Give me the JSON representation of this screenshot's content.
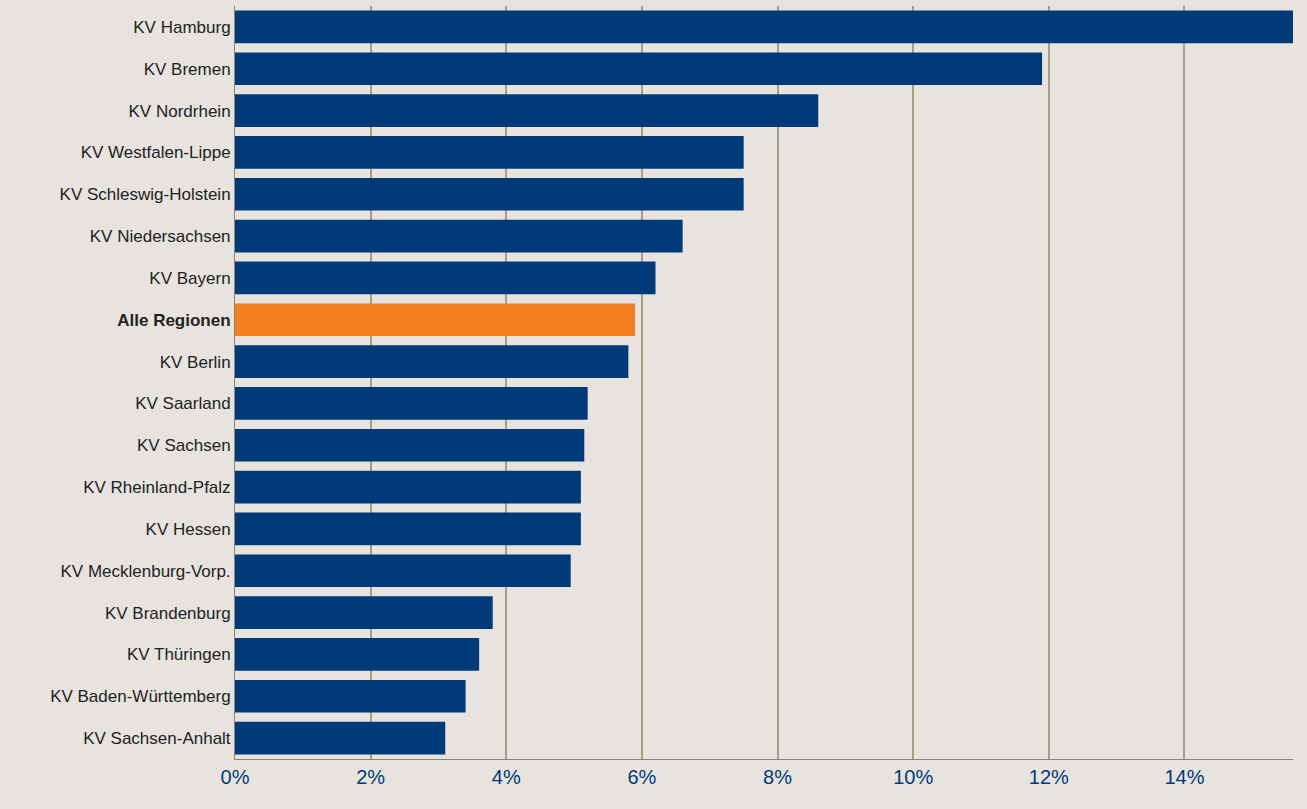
{
  "chart_data": {
    "type": "bar",
    "orientation": "horizontal",
    "categories": [
      "KV Hamburg",
      "KV Bremen",
      "KV Nordrhein",
      "KV Westfalen-Lippe",
      "KV Schleswig-Holstein",
      "KV Niedersachsen",
      "KV Bayern",
      "Alle Regionen",
      "KV Berlin",
      "KV Saarland",
      "KV Sachsen",
      "KV Rheinland-Pfalz",
      "KV Hessen",
      "KV Mecklenburg-Vorp.",
      "KV Brandenburg",
      "KV Thüringen",
      "KV Baden-Württemberg",
      "KV Sachsen-Anhalt"
    ],
    "values": [
      15.6,
      11.9,
      8.6,
      7.5,
      7.5,
      6.6,
      6.2,
      5.9,
      5.8,
      5.2,
      5.15,
      5.1,
      5.1,
      4.95,
      3.8,
      3.6,
      3.4,
      3.1
    ],
    "colors": [
      "#003a78",
      "#003a78",
      "#003a78",
      "#003a78",
      "#003a78",
      "#003a78",
      "#003a78",
      "#f47f20",
      "#003a78",
      "#003a78",
      "#003a78",
      "#003a78",
      "#003a78",
      "#003a78",
      "#003a78",
      "#003a78",
      "#003a78",
      "#003a78"
    ],
    "xlim": [
      0,
      15.6
    ],
    "xticks": [
      {
        "value": 0,
        "label": "0%"
      },
      {
        "value": 2,
        "label": "2%"
      },
      {
        "value": 4,
        "label": "4%"
      },
      {
        "value": 6,
        "label": "6%"
      },
      {
        "value": 8,
        "label": "8%"
      },
      {
        "value": 10,
        "label": "10%"
      },
      {
        "value": 12,
        "label": "12%"
      },
      {
        "value": 14,
        "label": "14%"
      }
    ],
    "grid": true
  }
}
